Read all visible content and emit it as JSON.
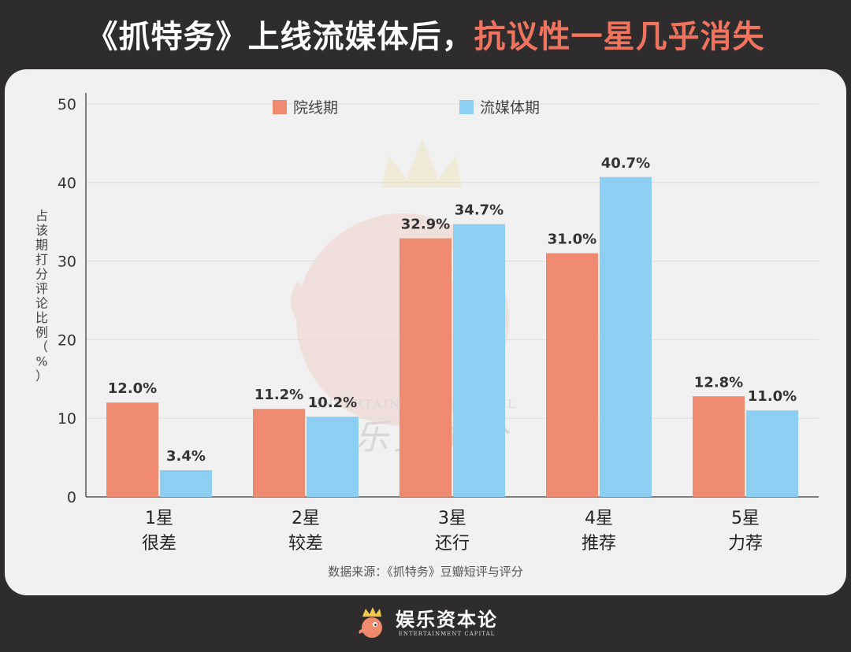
{
  "headline": {
    "part1": "《抓特务》上线流媒体后，",
    "part2": "抗议性一星几乎消失"
  },
  "chart_data": {
    "type": "bar",
    "categories": [
      "1星\n很差",
      "2星\n较差",
      "3星\n还行",
      "4星\n推荐",
      "5星\n力荐"
    ],
    "series": [
      {
        "name": "院线期",
        "values": [
          12.0,
          11.2,
          32.9,
          31.0,
          12.8
        ],
        "labels": [
          "12.0%",
          "11.2%",
          "32.9%",
          "31.0%",
          "12.8%"
        ],
        "color": "#ee8a70"
      },
      {
        "name": "流媒体期",
        "values": [
          3.4,
          10.2,
          34.7,
          40.7,
          11.0
        ],
        "labels": [
          "3.4%",
          "10.2%",
          "34.7%",
          "40.7%",
          "11.0%"
        ],
        "color": "#8dcff2"
      }
    ],
    "ylabel": "占该期打分评论比例（%）",
    "ylim": [
      0,
      50
    ],
    "yticks": [
      0,
      10,
      20,
      30,
      40,
      50
    ],
    "grid": true,
    "legend": "top-center",
    "source": "数据来源：《抓特务》豆瓣短评与评分"
  },
  "watermark": {
    "text_cn": "娱乐资本论",
    "text_en": "ENTERTAINMENT CAPITAL"
  },
  "footer": {
    "brand_cn": "娱乐资本论",
    "brand_en": "ENTERTAINMENT CAPITAL"
  },
  "colors": {
    "background": "#2e2c2d",
    "card": "#f1f1f1",
    "accent": "#f0735e"
  }
}
